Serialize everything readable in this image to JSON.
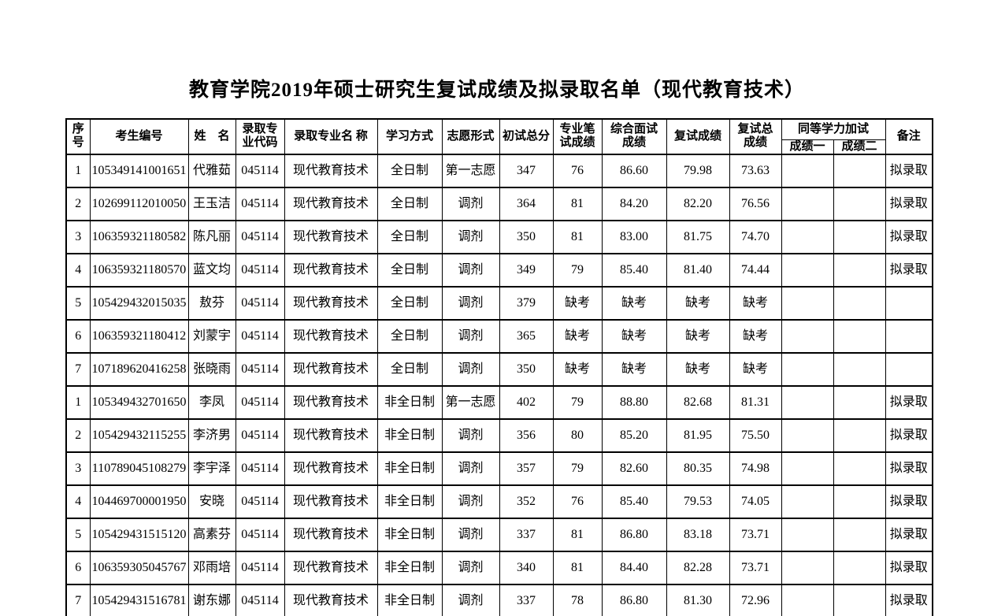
{
  "page_title": "教育学院2019年硕士研究生复试成绩及拟录取名单（现代教育技术）",
  "colors": {
    "background": "#ffffff",
    "text": "#000000",
    "border": "#000000"
  },
  "table": {
    "headers": {
      "seq": "序号",
      "candidate_no": "考生编号",
      "name": "姓　名",
      "major_code": "录取专\n业代码",
      "major_name": "录取专业名 称",
      "study_mode": "学习方式",
      "preference": "志愿形式",
      "initial_total": "初试总分",
      "written_score": "专业笔\n试成绩",
      "interview_score": "综合面试\n成绩",
      "retest_score": "复试成绩",
      "retest_total": "复试总\n成绩",
      "equiv_group": "同等学力加试",
      "score1": "成绩一",
      "score2": "成绩二",
      "remark": "备注"
    },
    "rows": [
      [
        "1",
        "105349141001651",
        "代雅茹",
        "045114",
        "现代教育技术",
        "全日制",
        "第一志愿",
        "347",
        "76",
        "86.60",
        "79.98",
        "73.63",
        "",
        "",
        "拟录取"
      ],
      [
        "2",
        "102699112010050",
        "王玉洁",
        "045114",
        "现代教育技术",
        "全日制",
        "调剂",
        "364",
        "81",
        "84.20",
        "82.20",
        "76.56",
        "",
        "",
        "拟录取"
      ],
      [
        "3",
        "106359321180582",
        "陈凡丽",
        "045114",
        "现代教育技术",
        "全日制",
        "调剂",
        "350",
        "81",
        "83.00",
        "81.75",
        "74.70",
        "",
        "",
        "拟录取"
      ],
      [
        "4",
        "106359321180570",
        "蓝文均",
        "045114",
        "现代教育技术",
        "全日制",
        "调剂",
        "349",
        "79",
        "85.40",
        "81.40",
        "74.44",
        "",
        "",
        "拟录取"
      ],
      [
        "5",
        "105429432015035",
        "敖芬",
        "045114",
        "现代教育技术",
        "全日制",
        "调剂",
        "379",
        "缺考",
        "缺考",
        "缺考",
        "缺考",
        "",
        "",
        ""
      ],
      [
        "6",
        "106359321180412",
        "刘蒙宇",
        "045114",
        "现代教育技术",
        "全日制",
        "调剂",
        "365",
        "缺考",
        "缺考",
        "缺考",
        "缺考",
        "",
        "",
        ""
      ],
      [
        "7",
        "107189620416258",
        "张晓雨",
        "045114",
        "现代教育技术",
        "全日制",
        "调剂",
        "350",
        "缺考",
        "缺考",
        "缺考",
        "缺考",
        "",
        "",
        ""
      ],
      [
        "1",
        "105349432701650",
        "李凤",
        "045114",
        "现代教育技术",
        "非全日制",
        "第一志愿",
        "402",
        "79",
        "88.80",
        "82.68",
        "81.31",
        "",
        "",
        "拟录取"
      ],
      [
        "2",
        "105429432115255",
        "李济男",
        "045114",
        "现代教育技术",
        "非全日制",
        "调剂",
        "356",
        "80",
        "85.20",
        "81.95",
        "75.50",
        "",
        "",
        "拟录取"
      ],
      [
        "3",
        "110789045108279",
        "李宇泽",
        "045114",
        "现代教育技术",
        "非全日制",
        "调剂",
        "357",
        "79",
        "82.60",
        "80.35",
        "74.98",
        "",
        "",
        "拟录取"
      ],
      [
        "4",
        "104469700001950",
        "安晓",
        "045114",
        "现代教育技术",
        "非全日制",
        "调剂",
        "352",
        "76",
        "85.40",
        "79.53",
        "74.05",
        "",
        "",
        "拟录取"
      ],
      [
        "5",
        "105429431515120",
        "高素芬",
        "045114",
        "现代教育技术",
        "非全日制",
        "调剂",
        "337",
        "81",
        "86.80",
        "83.18",
        "73.71",
        "",
        "",
        "拟录取"
      ],
      [
        "6",
        "106359305045767",
        "邓雨培",
        "045114",
        "现代教育技术",
        "非全日制",
        "调剂",
        "340",
        "81",
        "84.40",
        "82.28",
        "73.71",
        "",
        "",
        "拟录取"
      ],
      [
        "7",
        "105429431516781",
        "谢东娜",
        "045114",
        "现代教育技术",
        "非全日制",
        "调剂",
        "337",
        "78",
        "86.80",
        "81.30",
        "72.96",
        "",
        "",
        "拟录取"
      ]
    ]
  }
}
